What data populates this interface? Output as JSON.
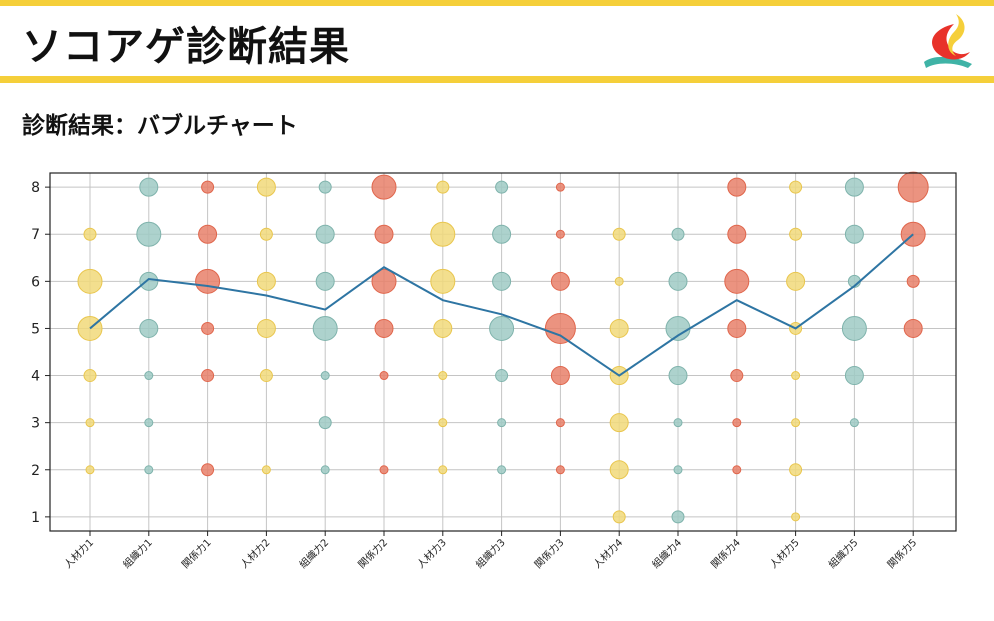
{
  "header": {
    "title": "ソコアゲ診断結果",
    "subtitle": "診断結果：バブルチャート",
    "logo_icon": "brand-logo-icon"
  },
  "colors": {
    "accent": "#f5cf3a",
    "jinzai": "#f1d97a",
    "soshiki": "#9fcac4",
    "kankei": "#e8806a",
    "line": "#2e75a3"
  },
  "chart_data": {
    "type": "scatter",
    "subtype": "bubble-with-line",
    "categories": [
      "人材力1",
      "組織力1",
      "関係力1",
      "人材力2",
      "組織力2",
      "関係力2",
      "人材力3",
      "組織力3",
      "関係力3",
      "人材力4",
      "組織力4",
      "関係力4",
      "人材力5",
      "組織力5",
      "関係力5"
    ],
    "category_groups": [
      "jinzai",
      "soshiki",
      "kankei",
      "jinzai",
      "soshiki",
      "kankei",
      "jinzai",
      "soshiki",
      "kankei",
      "jinzai",
      "soshiki",
      "kankei",
      "jinzai",
      "soshiki",
      "kankei"
    ],
    "ylim": [
      0.7,
      8.3
    ],
    "yticks": [
      1,
      2,
      3,
      4,
      5,
      6,
      7,
      8
    ],
    "grid": true,
    "bubbles": [
      [
        [
          8,
          0
        ],
        [
          7,
          2
        ],
        [
          6,
          4
        ],
        [
          5,
          4
        ],
        [
          4,
          2
        ],
        [
          3,
          1
        ],
        [
          2,
          1
        ]
      ],
      [
        [
          8,
          3
        ],
        [
          7,
          4
        ],
        [
          6,
          3
        ],
        [
          5,
          3
        ],
        [
          4,
          1
        ],
        [
          3,
          1
        ],
        [
          2,
          1
        ]
      ],
      [
        [
          8,
          2
        ],
        [
          7,
          3
        ],
        [
          6,
          4
        ],
        [
          5,
          2
        ],
        [
          4,
          2
        ],
        [
          2,
          2
        ]
      ],
      [
        [
          8,
          3
        ],
        [
          7,
          2
        ],
        [
          6,
          3
        ],
        [
          5,
          3
        ],
        [
          4,
          2
        ],
        [
          2,
          1
        ]
      ],
      [
        [
          8,
          2
        ],
        [
          7,
          3
        ],
        [
          6,
          3
        ],
        [
          5,
          4
        ],
        [
          4,
          1
        ],
        [
          3,
          2
        ],
        [
          2,
          1
        ]
      ],
      [
        [
          8,
          4
        ],
        [
          7,
          3
        ],
        [
          6,
          4
        ],
        [
          5,
          3
        ],
        [
          4,
          1
        ],
        [
          2,
          1
        ]
      ],
      [
        [
          8,
          2
        ],
        [
          7,
          4
        ],
        [
          6,
          4
        ],
        [
          5,
          3
        ],
        [
          4,
          1
        ],
        [
          3,
          1
        ],
        [
          2,
          1
        ]
      ],
      [
        [
          8,
          2
        ],
        [
          7,
          3
        ],
        [
          6,
          3
        ],
        [
          5,
          4
        ],
        [
          4,
          2
        ],
        [
          3,
          1
        ],
        [
          2,
          1
        ]
      ],
      [
        [
          8,
          1
        ],
        [
          7,
          1
        ],
        [
          6,
          3
        ],
        [
          5,
          5
        ],
        [
          4,
          3
        ],
        [
          3,
          1
        ],
        [
          2,
          1
        ]
      ],
      [
        [
          7,
          2
        ],
        [
          6,
          1
        ],
        [
          5,
          3
        ],
        [
          4,
          3
        ],
        [
          3,
          3
        ],
        [
          2,
          3
        ],
        [
          1,
          2
        ]
      ],
      [
        [
          7,
          2
        ],
        [
          6,
          3
        ],
        [
          5,
          4
        ],
        [
          4,
          3
        ],
        [
          3,
          1
        ],
        [
          2,
          1
        ],
        [
          1,
          2
        ]
      ],
      [
        [
          8,
          3
        ],
        [
          7,
          3
        ],
        [
          6,
          4
        ],
        [
          5,
          3
        ],
        [
          4,
          2
        ],
        [
          3,
          1
        ],
        [
          2,
          1
        ]
      ],
      [
        [
          8,
          2
        ],
        [
          7,
          2
        ],
        [
          6,
          3
        ],
        [
          5,
          2
        ],
        [
          4,
          1
        ],
        [
          3,
          1
        ],
        [
          2,
          2
        ],
        [
          1,
          1
        ]
      ],
      [
        [
          8,
          3
        ],
        [
          7,
          3
        ],
        [
          6,
          2
        ],
        [
          5,
          4
        ],
        [
          4,
          3
        ],
        [
          3,
          1
        ]
      ],
      [
        [
          8,
          5
        ],
        [
          7,
          4
        ],
        [
          6,
          2
        ],
        [
          5,
          3
        ]
      ]
    ],
    "line_values": [
      5.0,
      6.05,
      5.9,
      5.7,
      5.4,
      6.3,
      5.6,
      5.3,
      4.85,
      4.0,
      4.85,
      5.6,
      5.0,
      5.9,
      7.0
    ],
    "title": "",
    "xlabel": "",
    "ylabel": ""
  }
}
